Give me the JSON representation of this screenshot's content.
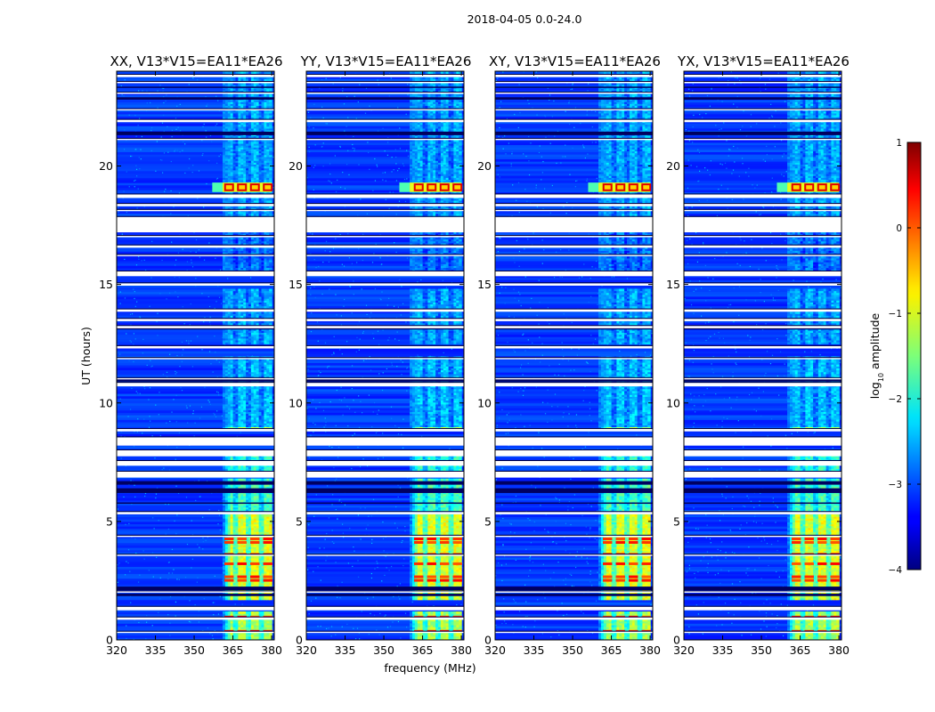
{
  "figure": {
    "suptitle": "2018-04-05 0.0-24.0",
    "xlabel": "frequency (MHz)",
    "ylabel": "UT (hours)"
  },
  "chart_data": [
    {
      "type": "heatmap",
      "title": "XX, V13*V15=EA11*EA26",
      "xlim": [
        320,
        381
      ],
      "ylim": [
        0,
        24
      ],
      "xticks": [
        320,
        335,
        350,
        365,
        380
      ],
      "yticks": [
        0,
        5,
        10,
        15,
        20
      ],
      "hot_band_mhz": [
        361,
        380
      ],
      "rfi_columns_mhz": [
        363.5,
        368.5,
        373.5,
        378.5
      ],
      "strong_burst_ut": [
        18.9,
        19.3
      ]
    },
    {
      "type": "heatmap",
      "title": "YY, V13*V15=EA11*EA26",
      "xlim": [
        320,
        381
      ],
      "ylim": [
        0,
        24
      ],
      "xticks": [
        320,
        335,
        350,
        365,
        380
      ],
      "yticks": [
        0,
        5,
        10,
        15,
        20
      ],
      "hot_band_mhz": [
        360,
        380
      ],
      "rfi_columns_mhz": [
        363.5,
        368.5,
        373.5,
        378.5
      ],
      "strong_burst_ut": [
        18.9,
        19.3
      ]
    },
    {
      "type": "heatmap",
      "title": "XY, V13*V15=EA11*EA26",
      "xlim": [
        320,
        381
      ],
      "ylim": [
        0,
        24
      ],
      "xticks": [
        320,
        335,
        350,
        365,
        380
      ],
      "yticks": [
        0,
        5,
        10,
        15,
        20
      ],
      "hot_band_mhz": [
        360,
        380
      ],
      "rfi_columns_mhz": [
        363.5,
        368.5,
        373.5,
        378.5
      ],
      "strong_burst_ut": [
        18.9,
        19.3
      ]
    },
    {
      "type": "heatmap",
      "title": "YX, V13*V15=EA11*EA26",
      "xlim": [
        320,
        381
      ],
      "ylim": [
        0,
        24
      ],
      "xticks": [
        320,
        335,
        350,
        365,
        380
      ],
      "yticks": [
        0,
        5,
        10,
        15,
        20
      ],
      "hot_band_mhz": [
        360,
        380
      ],
      "rfi_columns_mhz": [
        363.5,
        368.5,
        373.5,
        378.5
      ],
      "strong_burst_ut": [
        18.9,
        19.3
      ]
    }
  ],
  "flagged_gaps_ut": [
    [
      0.3,
      0.35
    ],
    [
      0.85,
      0.95
    ],
    [
      1.25,
      1.4
    ],
    [
      2.0,
      2.05
    ],
    [
      3.55,
      3.6
    ],
    [
      4.35,
      4.4
    ],
    [
      5.3,
      5.4
    ],
    [
      6.85,
      7.1
    ],
    [
      7.35,
      7.55
    ],
    [
      7.75,
      8.0
    ],
    [
      8.2,
      8.55
    ],
    [
      8.8,
      8.9
    ],
    [
      10.7,
      10.85
    ],
    [
      11.0,
      11.05
    ],
    [
      11.85,
      11.9
    ],
    [
      12.3,
      12.4
    ],
    [
      13.15,
      13.25
    ],
    [
      13.45,
      13.55
    ],
    [
      13.85,
      13.95
    ],
    [
      14.95,
      15.05
    ],
    [
      15.35,
      15.55
    ],
    [
      16.2,
      16.25
    ],
    [
      16.55,
      16.65
    ],
    [
      17.0,
      17.05
    ],
    [
      17.2,
      17.85
    ],
    [
      18.1,
      18.15
    ],
    [
      18.3,
      18.4
    ],
    [
      18.65,
      18.8
    ],
    [
      21.1,
      21.15
    ],
    [
      21.85,
      21.95
    ],
    [
      22.35,
      22.4
    ],
    [
      23.05,
      23.1
    ],
    [
      23.5,
      23.55
    ],
    [
      23.75,
      23.85
    ]
  ],
  "dark_rows_ut": [
    [
      6.2,
      6.4
    ],
    [
      6.55,
      6.7
    ],
    [
      5.75,
      5.8
    ],
    [
      2.1,
      2.25
    ],
    [
      13.1,
      13.2
    ],
    [
      10.9,
      11.0
    ],
    [
      21.3,
      21.45
    ],
    [
      22.8,
      22.9
    ],
    [
      23.3,
      23.35
    ],
    [
      1.85,
      1.95
    ]
  ],
  "hot_blocks_ut": [
    {
      "range": [
        1.7,
        5.25
      ],
      "level": 0.6
    },
    {
      "range": [
        0.0,
        1.2
      ],
      "level": 0.55
    },
    {
      "range": [
        5.45,
        6.8
      ],
      "level": 0.45
    },
    {
      "range": [
        7.0,
        7.8
      ],
      "level": 0.42
    },
    {
      "range": [
        8.9,
        9.0
      ],
      "level": 0.55
    },
    {
      "range": [
        9.0,
        11.9
      ],
      "level": 0.32
    },
    {
      "range": [
        12.5,
        14.8
      ],
      "level": 0.3
    },
    {
      "range": [
        15.4,
        17.2
      ],
      "level": 0.25
    },
    {
      "range": [
        17.6,
        24.0
      ],
      "level": 0.3
    }
  ],
  "peak_rows_ut": [
    3.2,
    3.6,
    4.1,
    4.25,
    2.5,
    2.65,
    0.95,
    0.35
  ],
  "colorbar": {
    "label_base": "log",
    "label_sub": "10",
    "label_rest": " amplitude",
    "min": -4,
    "max": 1,
    "ticks": [
      1,
      0,
      -1,
      -2,
      -3,
      -4
    ],
    "tick_labels": [
      "1",
      "0",
      "−1",
      "−2",
      "−3",
      "−4"
    ],
    "colormap": "jet"
  }
}
